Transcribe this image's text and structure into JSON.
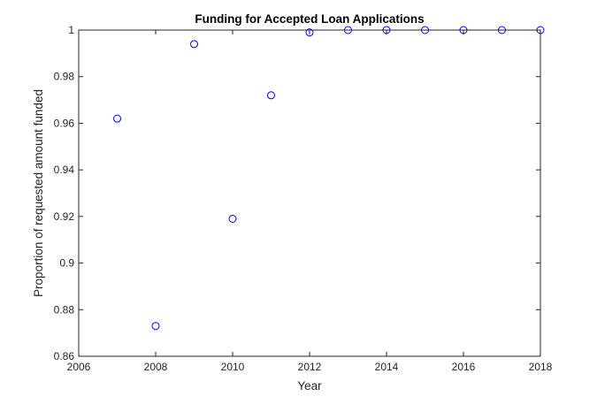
{
  "chart_data": {
    "type": "scatter",
    "title": "Funding for Accepted Loan Applications",
    "xlabel": "Year",
    "ylabel": "Proportion of requested amount funded",
    "xlim": [
      2006,
      2018
    ],
    "ylim": [
      0.86,
      1
    ],
    "xticks": [
      "2006",
      "2008",
      "2010",
      "2012",
      "2014",
      "2016",
      "2018"
    ],
    "yticks": [
      "0.86",
      "0.88",
      "0.9",
      "0.92",
      "0.94",
      "0.96",
      "0.98",
      "1"
    ],
    "grid": false,
    "marker": "circle-open",
    "colors": {
      "marker": "#0000ff",
      "axes": "#262626",
      "background": "#ffffff"
    },
    "series": [
      {
        "x": [
          2007,
          2008,
          2009,
          2010,
          2011,
          2012,
          2013,
          2014,
          2015,
          2016,
          2017,
          2018
        ],
        "y": [
          0.962,
          0.873,
          0.994,
          0.919,
          0.972,
          0.999,
          1.0,
          1.0,
          1.0,
          1.0,
          1.0,
          1.0
        ]
      }
    ]
  }
}
